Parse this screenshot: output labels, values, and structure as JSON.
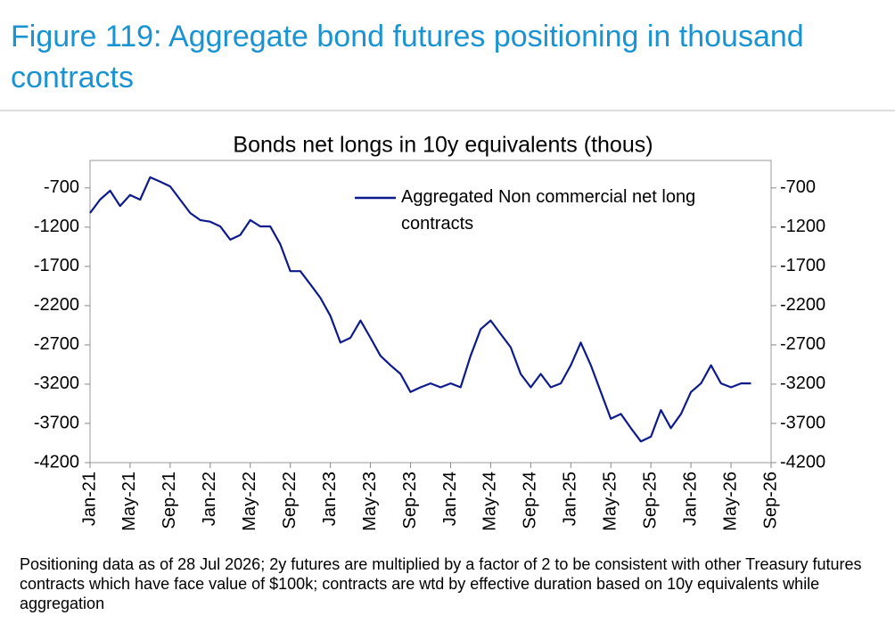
{
  "chart_data": {
    "type": "line",
    "title": "Figure 119: Aggregate bond futures positioning in thousand contracts",
    "subtitle": "Bonds net longs in 10y equivalents (thous)",
    "note": "Positioning data as of 28 Jul 2026; 2y futures are multiplied by a factor of 2 to be consistent with other Treasury futures contracts which have face value of $100k; contracts are wtd by effective duration based on 10y equivalents while aggregation",
    "legend_position": "upper right",
    "x": [
      "2021-01",
      "2021-02",
      "2021-03",
      "2021-04",
      "2021-05",
      "2021-06",
      "2021-07",
      "2021-08",
      "2021-09",
      "2021-10",
      "2021-11",
      "2021-12",
      "2022-01",
      "2022-02",
      "2022-03",
      "2022-04",
      "2022-05",
      "2022-06",
      "2022-07",
      "2022-08",
      "2022-09",
      "2022-10",
      "2022-11",
      "2022-12",
      "2023-01",
      "2023-02",
      "2023-03",
      "2023-04",
      "2023-05",
      "2023-06",
      "2023-07",
      "2023-08",
      "2023-09",
      "2023-10",
      "2023-11",
      "2023-12",
      "2024-01",
      "2024-02",
      "2024-03",
      "2024-04",
      "2024-05",
      "2024-06",
      "2024-07",
      "2024-08",
      "2024-09",
      "2024-10",
      "2024-11",
      "2024-12",
      "2025-01",
      "2025-02",
      "2025-03",
      "2025-04",
      "2025-05",
      "2025-06",
      "2025-07",
      "2025-08",
      "2025-09",
      "2025-10",
      "2025-11",
      "2025-12",
      "2026-01",
      "2026-02",
      "2026-03",
      "2026-04",
      "2026-05",
      "2026-06",
      "2026-07"
    ],
    "series": [
      {
        "name": "Aggregated Non commercial net long contracts",
        "color": "#0d1a8c",
        "values": [
          -1020,
          -850,
          -735,
          -930,
          -790,
          -850,
          -565,
          -620,
          -680,
          -850,
          -1020,
          -1110,
          -1130,
          -1190,
          -1360,
          -1300,
          -1110,
          -1190,
          -1190,
          -1420,
          -1760,
          -1760,
          -1930,
          -2100,
          -2330,
          -2670,
          -2610,
          -2390,
          -2610,
          -2840,
          -2960,
          -3070,
          -3300,
          -3240,
          -3190,
          -3240,
          -3190,
          -3240,
          -2840,
          -2500,
          -2390,
          -2560,
          -2730,
          -3070,
          -3240,
          -3070,
          -3240,
          -3190,
          -2960,
          -2670,
          -2960,
          -3300,
          -3640,
          -3580,
          -3760,
          -3930,
          -3870,
          -3530,
          -3760,
          -3580,
          -3300,
          -3190,
          -2960,
          -3190,
          -3240,
          -3190,
          -3190
        ]
      }
    ],
    "xlim": [
      "2021-01",
      "2026-09"
    ],
    "xticks": [
      {
        "value": "2021-01",
        "label": "Jan-21"
      },
      {
        "value": "2021-05",
        "label": "May-21"
      },
      {
        "value": "2021-09",
        "label": "Sep-21"
      },
      {
        "value": "2022-01",
        "label": "Jan-22"
      },
      {
        "value": "2022-05",
        "label": "May-22"
      },
      {
        "value": "2022-09",
        "label": "Sep-22"
      },
      {
        "value": "2023-01",
        "label": "Jan-23"
      },
      {
        "value": "2023-05",
        "label": "May-23"
      },
      {
        "value": "2023-09",
        "label": "Sep-23"
      },
      {
        "value": "2024-01",
        "label": "Jan-24"
      },
      {
        "value": "2024-05",
        "label": "May-24"
      },
      {
        "value": "2024-09",
        "label": "Sep-24"
      },
      {
        "value": "2025-01",
        "label": "Jan-25"
      },
      {
        "value": "2025-05",
        "label": "May-25"
      },
      {
        "value": "2025-09",
        "label": "Sep-25"
      },
      {
        "value": "2026-01",
        "label": "Jan-26"
      },
      {
        "value": "2026-05",
        "label": "May-26"
      },
      {
        "value": "2026-09",
        "label": "Sep-26"
      }
    ],
    "ylim": [
      -4200,
      -350
    ],
    "yticks": [
      -700,
      -1200,
      -1700,
      -2200,
      -2700,
      -3200,
      -3700,
      -4200
    ],
    "y_axis_both_sides": true,
    "grid": false
  }
}
